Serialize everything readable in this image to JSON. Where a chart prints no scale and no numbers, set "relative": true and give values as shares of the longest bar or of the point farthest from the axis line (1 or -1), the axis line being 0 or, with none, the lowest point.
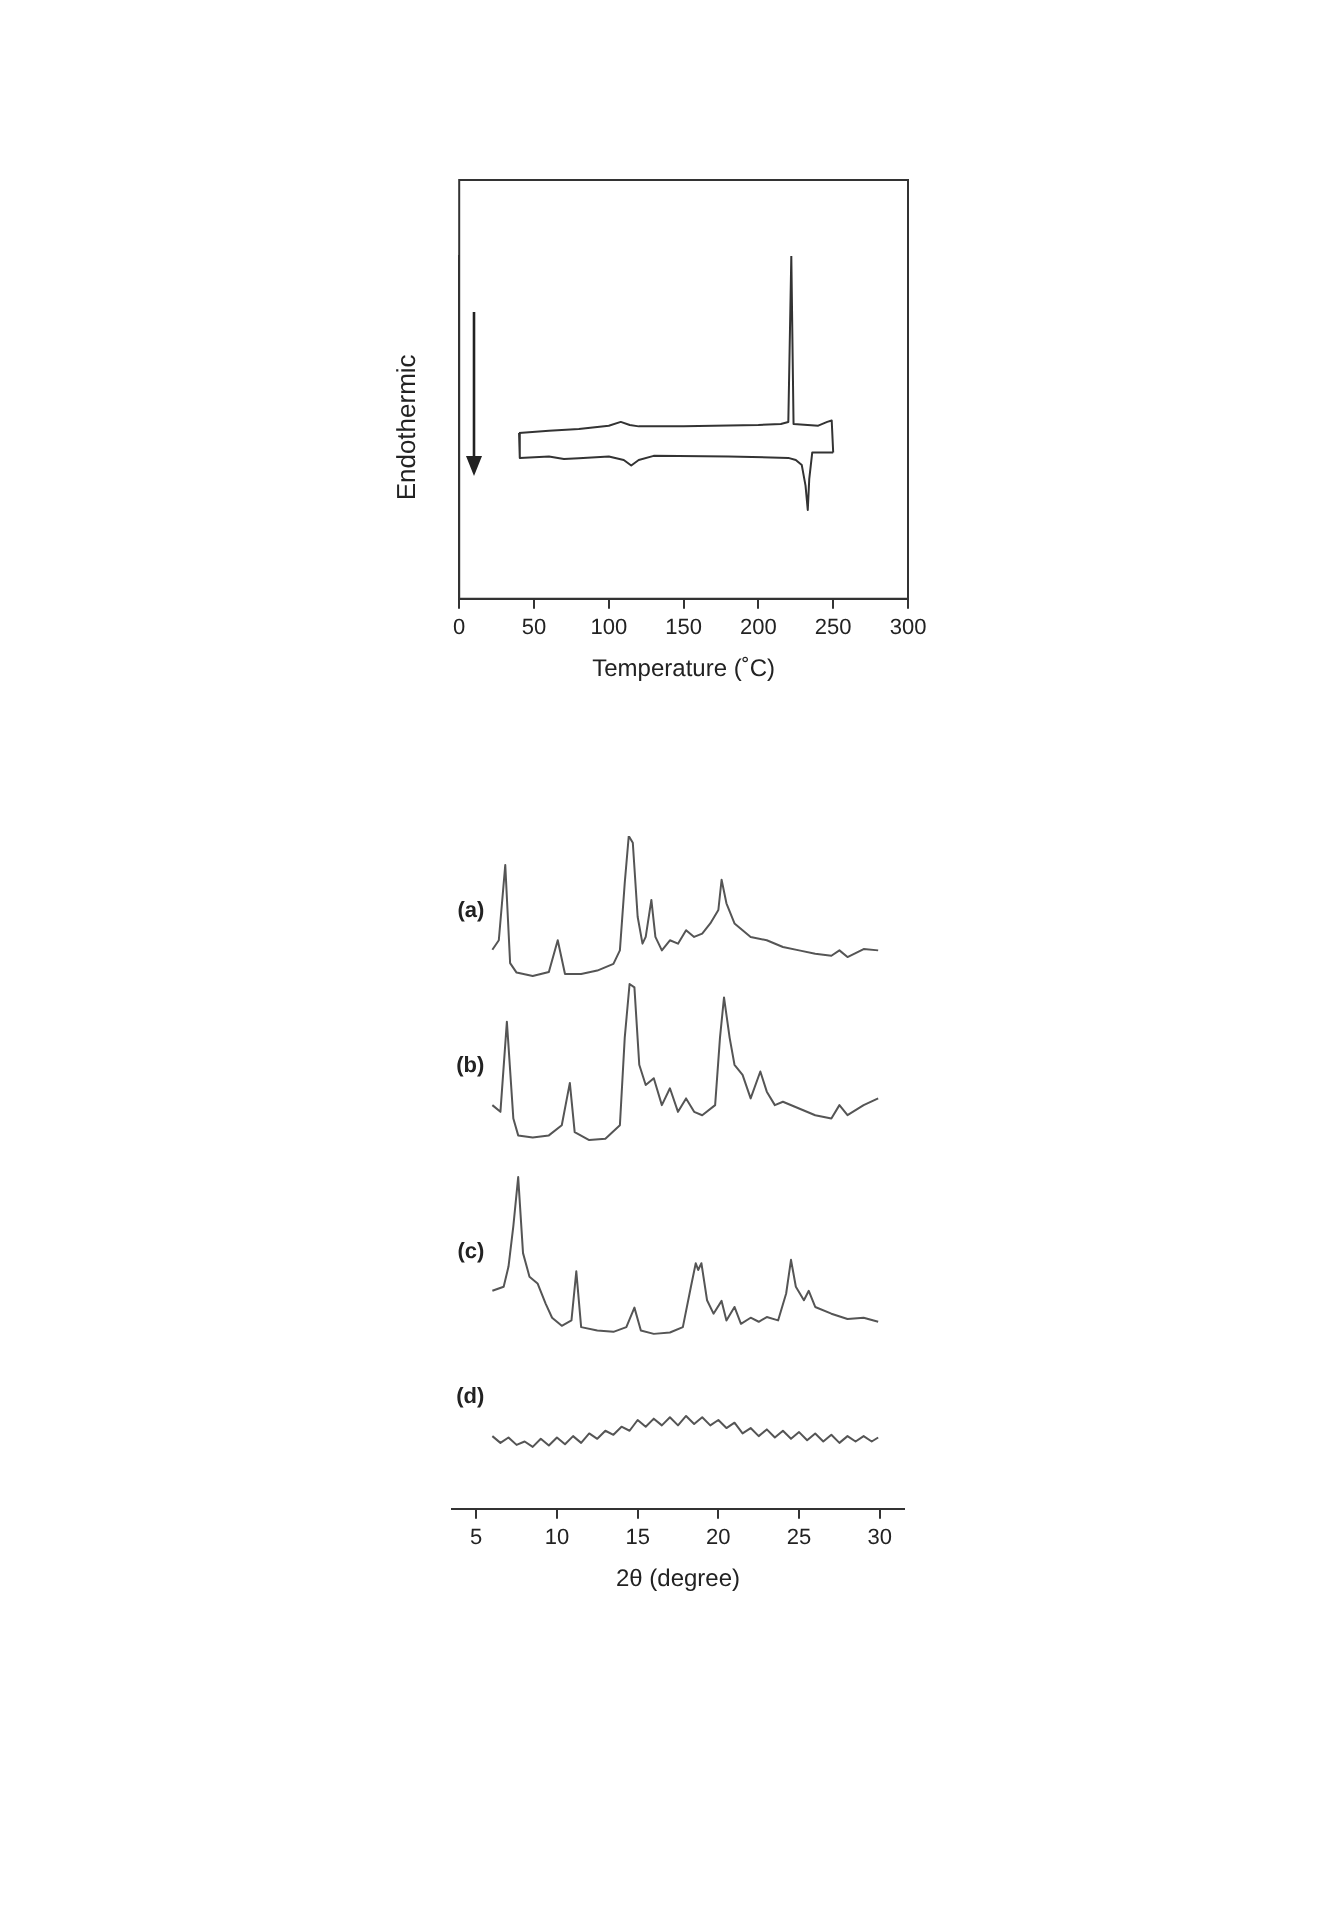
{
  "chart_data": [
    {
      "type": "line",
      "relative": true,
      "xlabel": "Temperature (˚C)",
      "ylabel": "Endothermic",
      "xlim": [
        0,
        300
      ],
      "xticks": [
        0,
        50,
        100,
        150,
        200,
        250,
        300
      ],
      "tick_labels": "x",
      "grid": false,
      "marker": "none",
      "line_style": "solid",
      "series": [
        {
          "color": "#333333",
          "x": [
            40,
            60,
            80,
            100,
            108,
            114,
            120,
            150,
            200,
            215,
            220,
            222,
            223.5,
            240,
            246,
            249,
            250
          ],
          "values": [
            0.484,
            0.49,
            0.495,
            0.505,
            0.516,
            0.507,
            0.503,
            0.503,
            0.507,
            0.51,
            0.516,
            1,
            0.51,
            0.505,
            0.516,
            0.52,
            0.427
          ]
        },
        {
          "color": "#333333",
          "x": [
            40,
            40.5,
            60,
            70,
            80,
            100,
            110,
            115,
            120,
            130,
            180,
            220,
            225,
            229,
            231.5,
            233,
            234,
            236,
            250
          ],
          "values": [
            0.484,
            0.411,
            0.415,
            0.408,
            0.41,
            0.415,
            0.405,
            0.389,
            0.405,
            0.417,
            0.415,
            0.411,
            0.405,
            0.39,
            0.33,
            0.259,
            0.35,
            0.427,
            0.427
          ]
        }
      ]
    },
    {
      "type": "line",
      "relative": true,
      "xlabel": "2θ (degree)",
      "xlim": [
        3.5,
        31.5
      ],
      "xticks": [
        5,
        10,
        15,
        20,
        25,
        30
      ],
      "tick_labels": "x",
      "grid": false,
      "marker": "none",
      "line_style": "solid",
      "series": [
        {
          "name": "(a)",
          "color": "#555555",
          "x": [
            6.0,
            6.4,
            6.8,
            7.1,
            7.5,
            8.5,
            9.5,
            10.05,
            10.5,
            11.5,
            12.5,
            13.5,
            13.9,
            14.2,
            14.45,
            14.7,
            15.0,
            15.3,
            15.5,
            15.85,
            16.1,
            16.5,
            17,
            17.5,
            18,
            18.5,
            19,
            19.5,
            20,
            20.2,
            20.5,
            21,
            21.5,
            22,
            23,
            24,
            25,
            26,
            27,
            27.5,
            28,
            29,
            29.9
          ],
          "values": [
            0.831,
            0.845,
            0.957,
            0.811,
            0.797,
            0.792,
            0.798,
            0.845,
            0.795,
            0.795,
            0.8,
            0.81,
            0.83,
            0.93,
            1,
            0.99,
            0.88,
            0.84,
            0.85,
            0.905,
            0.85,
            0.83,
            0.845,
            0.84,
            0.86,
            0.85,
            0.855,
            0.87,
            0.89,
            0.935,
            0.9,
            0.87,
            0.86,
            0.85,
            0.845,
            0.835,
            0.83,
            0.825,
            0.822,
            0.83,
            0.82,
            0.832,
            0.83
          ]
        },
        {
          "name": "(b)",
          "color": "#555555",
          "x": [
            6.0,
            6.5,
            6.9,
            7.3,
            7.6,
            8.5,
            9.5,
            10.3,
            10.8,
            11.1,
            12,
            13,
            13.9,
            14.2,
            14.5,
            14.8,
            15.1,
            15.5,
            16,
            16.5,
            17,
            17.5,
            18,
            18.5,
            19,
            19.8,
            20.1,
            20.35,
            20.7,
            21,
            21.5,
            22,
            22.6,
            23,
            23.5,
            24,
            25,
            26,
            27,
            27.5,
            28,
            29,
            29.9
          ],
          "values": [
            0.6,
            0.59,
            0.724,
            0.58,
            0.555,
            0.552,
            0.555,
            0.57,
            0.633,
            0.56,
            0.548,
            0.55,
            0.57,
            0.7,
            0.78,
            0.775,
            0.66,
            0.63,
            0.64,
            0.6,
            0.625,
            0.59,
            0.61,
            0.59,
            0.585,
            0.6,
            0.7,
            0.76,
            0.7,
            0.66,
            0.645,
            0.61,
            0.65,
            0.62,
            0.6,
            0.605,
            0.595,
            0.585,
            0.58,
            0.6,
            0.585,
            0.6,
            0.61
          ]
        },
        {
          "name": "(c)",
          "color": "#555555",
          "x": [
            6.0,
            6.7,
            7.0,
            7.3,
            7.6,
            7.9,
            8.3,
            8.8,
            9.3,
            9.7,
            10.3,
            10.9,
            11.2,
            11.5,
            12.5,
            13.5,
            14.3,
            14.8,
            15.2,
            16,
            17,
            17.8,
            18.3,
            18.6,
            18.75,
            18.95,
            19.3,
            19.7,
            20.2,
            20.5,
            21.0,
            21.4,
            22,
            22.5,
            23,
            23.7,
            24.2,
            24.5,
            24.8,
            25.3,
            25.6,
            26,
            27,
            28,
            29,
            29.9
          ],
          "values": [
            0.324,
            0.33,
            0.36,
            0.42,
            0.493,
            0.38,
            0.345,
            0.335,
            0.305,
            0.284,
            0.272,
            0.28,
            0.353,
            0.27,
            0.265,
            0.263,
            0.27,
            0.299,
            0.265,
            0.26,
            0.262,
            0.27,
            0.33,
            0.365,
            0.355,
            0.365,
            0.31,
            0.29,
            0.309,
            0.28,
            0.3,
            0.275,
            0.284,
            0.278,
            0.285,
            0.28,
            0.32,
            0.37,
            0.33,
            0.31,
            0.324,
            0.3,
            0.29,
            0.282,
            0.284,
            0.278
          ]
        },
        {
          "name": "(d)",
          "color": "#555555",
          "x": [
            6,
            6.5,
            7,
            7.5,
            8,
            8.5,
            9,
            9.5,
            10,
            10.5,
            11,
            11.5,
            12,
            12.5,
            13,
            13.5,
            14,
            14.5,
            15,
            15.5,
            16,
            16.5,
            17,
            17.5,
            18,
            18.5,
            19,
            19.5,
            20,
            20.5,
            21,
            21.5,
            22,
            22.5,
            23,
            23.5,
            24,
            24.5,
            25,
            25.5,
            26,
            26.5,
            27,
            27.5,
            28,
            28.5,
            29,
            29.5,
            29.9
          ],
          "values": [
            0.108,
            0.098,
            0.106,
            0.095,
            0.1,
            0.092,
            0.104,
            0.094,
            0.106,
            0.096,
            0.108,
            0.098,
            0.112,
            0.104,
            0.116,
            0.11,
            0.122,
            0.116,
            0.132,
            0.122,
            0.134,
            0.124,
            0.136,
            0.124,
            0.138,
            0.126,
            0.136,
            0.124,
            0.132,
            0.12,
            0.128,
            0.112,
            0.12,
            0.108,
            0.118,
            0.106,
            0.116,
            0.104,
            0.114,
            0.102,
            0.112,
            0.1,
            0.11,
            0.098,
            0.108,
            0.1,
            0.108,
            0.1,
            0.106
          ]
        }
      ]
    }
  ]
}
